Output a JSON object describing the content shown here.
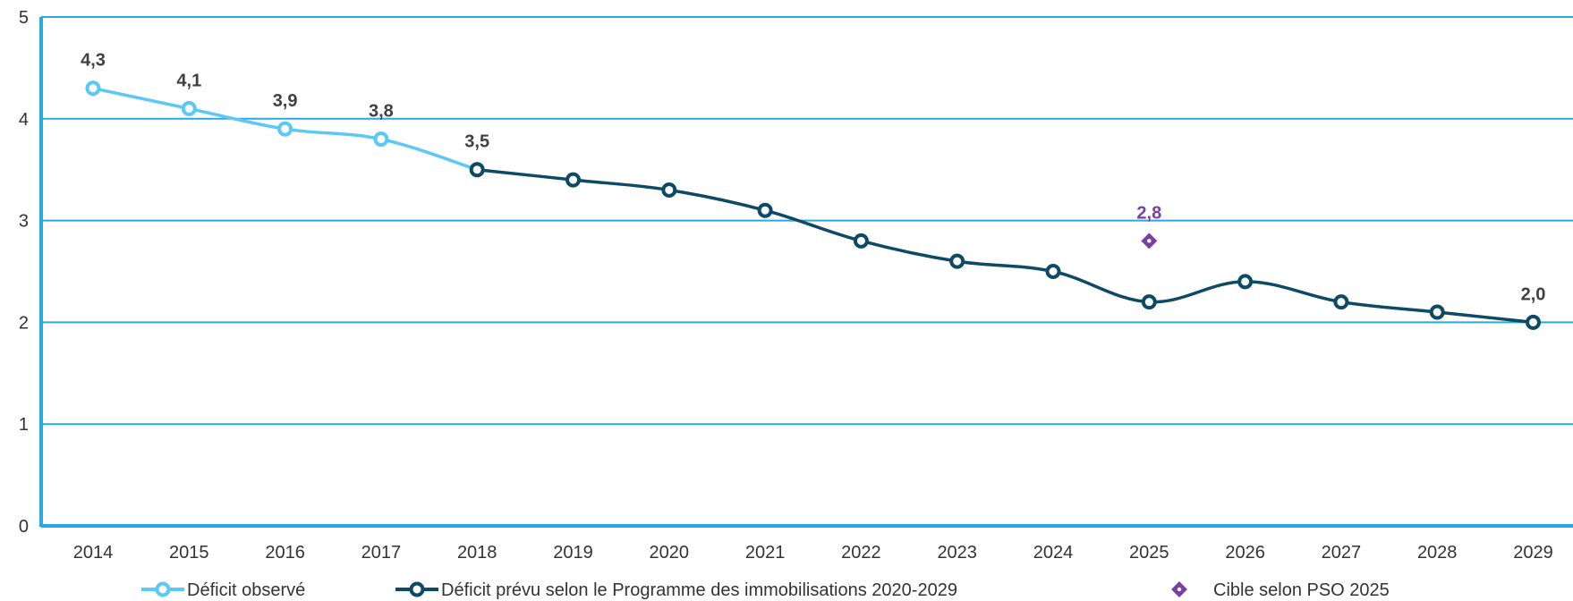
{
  "chart_data": {
    "type": "line",
    "title": "",
    "xlabel": "",
    "ylabel": "",
    "ylim": [
      0,
      5
    ],
    "yticks": [
      "0",
      "1",
      "2",
      "3",
      "4",
      "5"
    ],
    "categories": [
      "2014",
      "2015",
      "2016",
      "2017",
      "2018",
      "2019",
      "2020",
      "2021",
      "2022",
      "2023",
      "2024",
      "2025",
      "2026",
      "2027",
      "2028",
      "2029"
    ],
    "grid": true,
    "legend_position": "bottom",
    "series": [
      {
        "name": "Déficit observé",
        "color": "#5BC8F5",
        "kind": "line",
        "x": [
          "2014",
          "2015",
          "2016",
          "2017",
          "2018"
        ],
        "values": [
          4.3,
          4.1,
          3.9,
          3.8,
          3.5
        ],
        "labels": [
          "4,3",
          "4,1",
          "3,9",
          "3,8",
          "3,5"
        ]
      },
      {
        "name": "Déficit prévu selon le Programme des immobilisations 2020-2029",
        "color": "#0E4A66",
        "kind": "line",
        "x": [
          "2018",
          "2019",
          "2020",
          "2021",
          "2022",
          "2023",
          "2024",
          "2025",
          "2026",
          "2027",
          "2028",
          "2029"
        ],
        "values": [
          3.5,
          3.4,
          3.3,
          3.1,
          2.8,
          2.6,
          2.5,
          2.2,
          2.4,
          2.2,
          2.1,
          2.0
        ],
        "labels": [
          "",
          "",
          "",
          "",
          "",
          "",
          "",
          "",
          "",
          "",
          "",
          "2,0"
        ]
      },
      {
        "name": "Cible selon PSO 2025",
        "color": "#7B3FA0",
        "kind": "point",
        "x": [
          "2025"
        ],
        "values": [
          2.8
        ],
        "labels": [
          "2,8"
        ]
      }
    ]
  },
  "colors": {
    "grid": "#29A9DF",
    "axis": "#29A9DF",
    "label_dark": "#404040",
    "label_purple": "#7B3FA0"
  }
}
